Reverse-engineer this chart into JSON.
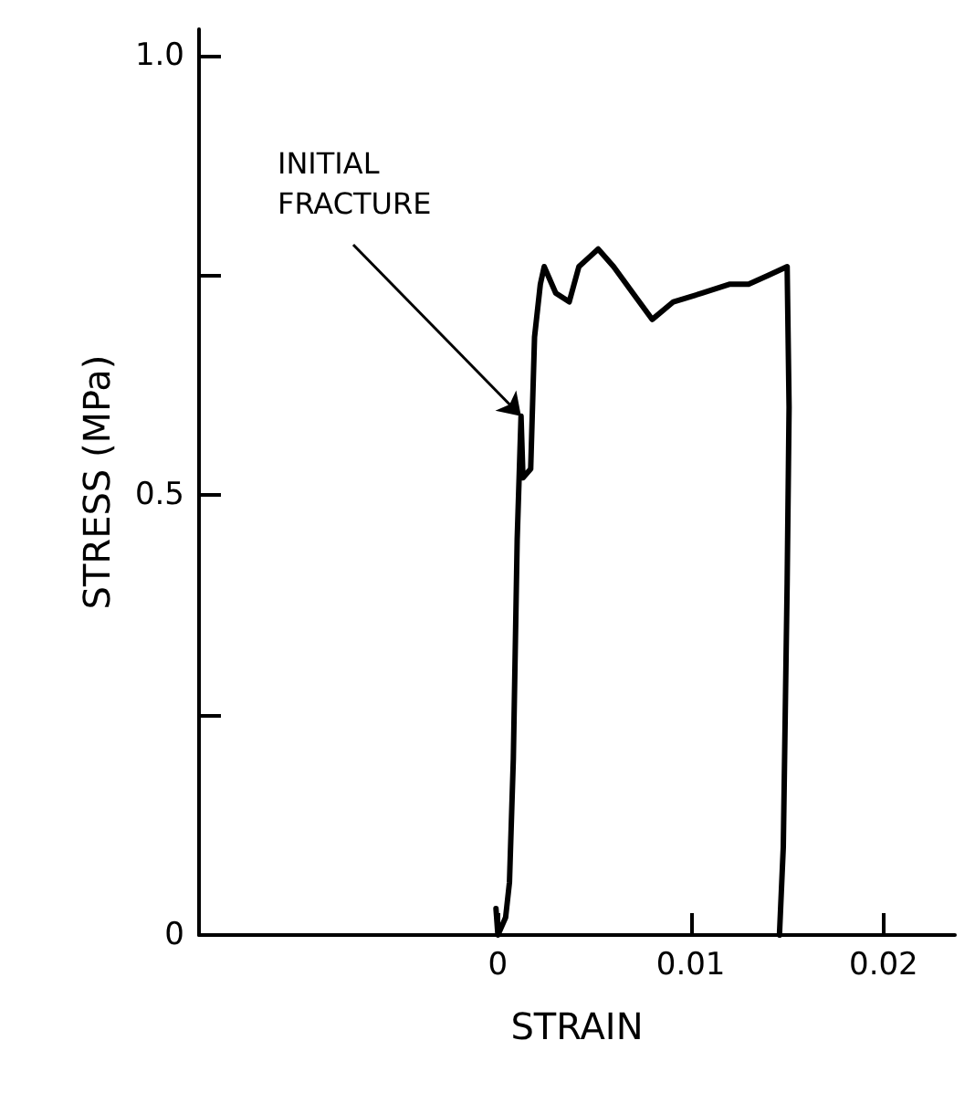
{
  "chart_data": {
    "type": "line",
    "xlabel": "STRAIN",
    "ylabel": "STRESS (MPa)",
    "x": [
      -0.0001,
      0,
      0.0004,
      0.0006,
      0.0008,
      0.001,
      0.0012,
      0.0013,
      0.0017,
      0.0019,
      0.0022,
      0.0024,
      0.003,
      0.0037,
      0.0042,
      0.0047,
      0.0052,
      0.006,
      0.007,
      0.008,
      0.0091,
      0.0106,
      0.012,
      0.013,
      0.014,
      0.015,
      0.0151,
      0.015,
      0.0149,
      0.0148,
      0.0146
    ],
    "series": [
      {
        "color": "#000000",
        "values": [
          0.03,
          0,
          0.02,
          0.06,
          0.2,
          0.45,
          0.59,
          0.52,
          0.53,
          0.68,
          0.74,
          0.76,
          0.73,
          0.72,
          0.76,
          0.77,
          0.78,
          0.76,
          0.73,
          0.7,
          0.72,
          0.73,
          0.74,
          0.74,
          0.75,
          0.76,
          0.6,
          0.4,
          0.25,
          0.1,
          0
        ]
      }
    ],
    "xlim": [
      -0.0155,
      0.0237
    ],
    "xticks": [
      0,
      0.01,
      0.02
    ],
    "ylim": [
      0,
      1.03
    ],
    "yticks": [
      0,
      {
        "value": 0.25,
        "label": null
      },
      0.5,
      {
        "value": 0.75,
        "label": null
      },
      {
        "value": 1,
        "label": "1.0"
      }
    ],
    "grid": false,
    "marker": "none",
    "line_style": "solid",
    "annotations": [
      {
        "text": "INITIAL\nFRACTURE",
        "x": 0.0012,
        "y": 0.59
      }
    ]
  }
}
